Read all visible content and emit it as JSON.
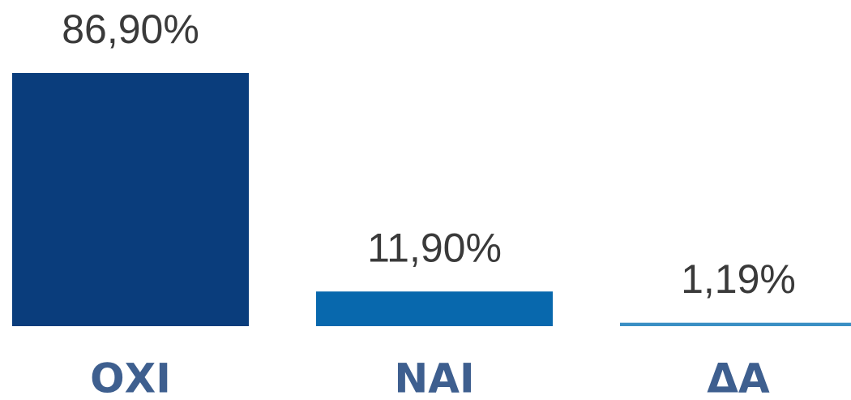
{
  "chart_data": {
    "type": "bar",
    "categories": [
      "ΟΧΙ",
      "ΝΑΙ",
      "ΔΑ"
    ],
    "values": [
      86.9,
      11.9,
      1.19
    ],
    "value_labels": [
      "86,90%",
      "11,90%",
      "1,19%"
    ],
    "colors": [
      "#0a3d7c",
      "#0868ad",
      "#3a8fc4"
    ]
  }
}
